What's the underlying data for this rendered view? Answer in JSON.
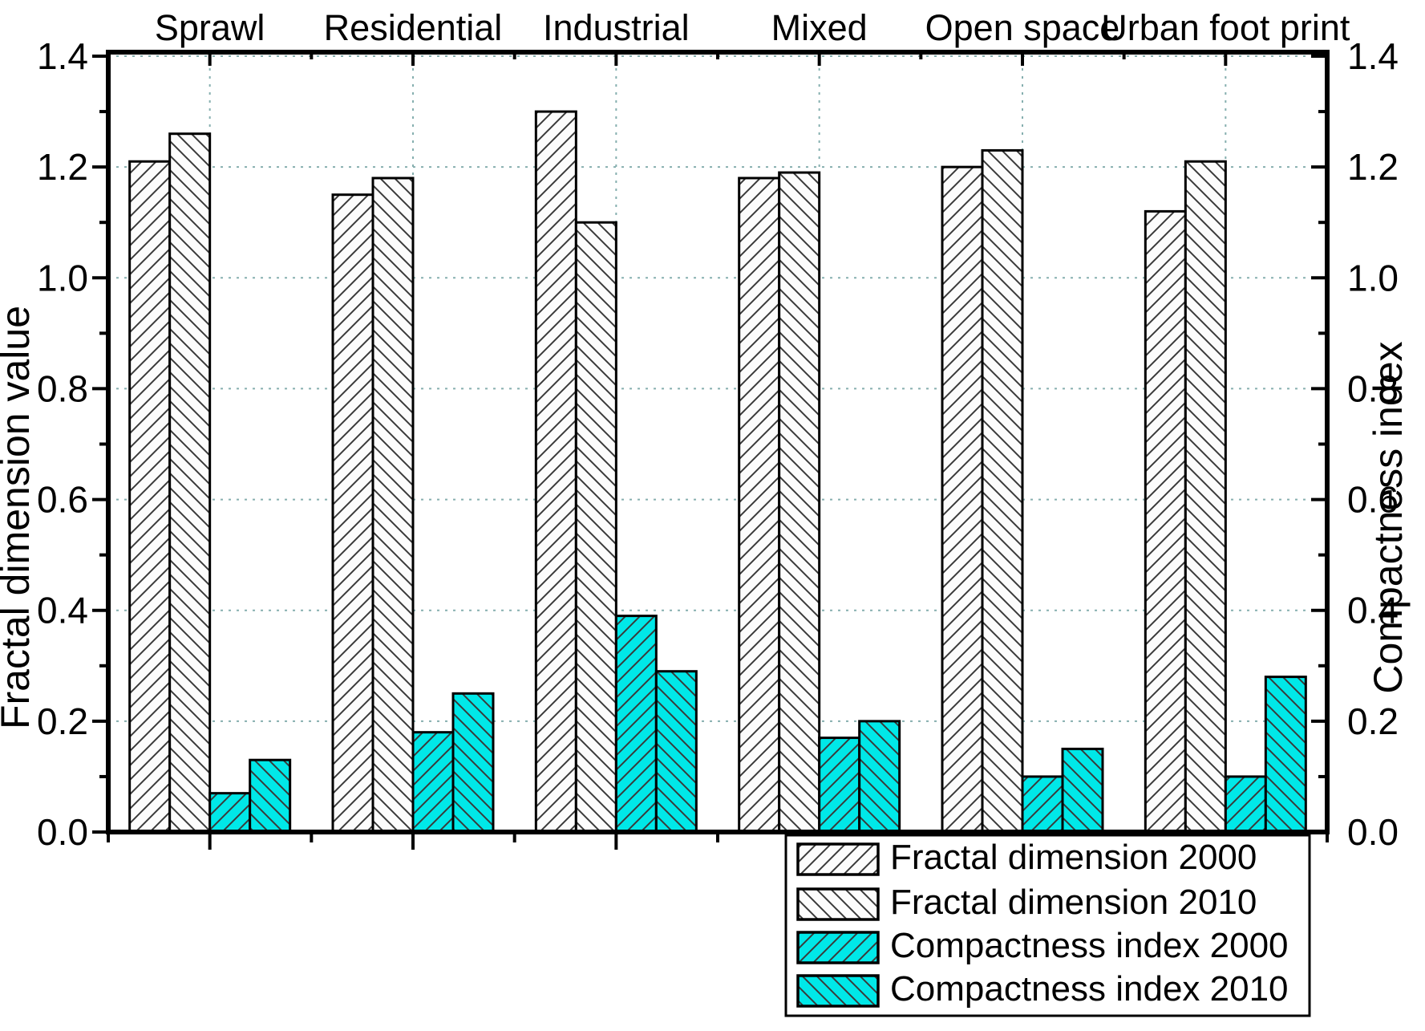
{
  "chart_data": {
    "type": "bar",
    "title": "",
    "categories": [
      "Sprawl",
      "Residential",
      "Industrial",
      "Mixed",
      "Open space",
      "Urban foot print"
    ],
    "series": [
      {
        "name": "Fractal dimension 2000",
        "axis": "left",
        "fill": "#FCFCFC",
        "hatch": "forward",
        "values": [
          1.21,
          1.15,
          1.3,
          1.18,
          1.2,
          1.12
        ]
      },
      {
        "name": "Fractal dimension 2010",
        "axis": "left",
        "fill": "#FCFCFC",
        "hatch": "backward",
        "values": [
          1.26,
          1.18,
          1.1,
          1.19,
          1.23,
          1.21
        ]
      },
      {
        "name": "Compactness index 2000",
        "axis": "right",
        "fill": "#00E8E8",
        "hatch": "forward",
        "values": [
          0.07,
          0.18,
          0.39,
          0.17,
          0.1,
          0.1
        ]
      },
      {
        "name": "Compactness index 2010",
        "axis": "right",
        "fill": "#00E8E8",
        "hatch": "backward",
        "values": [
          0.13,
          0.25,
          0.29,
          0.2,
          0.15,
          0.28
        ]
      }
    ],
    "ylabel_left": "Fractal dimension value",
    "ylabel_right": "Compactness index",
    "ylim": [
      0.0,
      1.4
    ],
    "ytick_step_major": 0.2,
    "ytick_step_minor": 0.1,
    "yticks_left": [
      "0.0",
      "0.2",
      "0.4",
      "0.6",
      "0.8",
      "1.0",
      "1.2",
      "1.4"
    ],
    "yticks_right": [
      "0.0",
      "0.2",
      "0.4",
      "0.6",
      "0.8",
      "1.0",
      "1.2",
      "1.4"
    ],
    "grid": "dotted",
    "grid_on": true,
    "legend_position": "bottom-right",
    "colors": {
      "axis": "#000000",
      "grid": "#86AFAF",
      "hatch_line": "#3A3A3A",
      "bar_white": "#FCFCFC",
      "bar_cyan": "#00E8E8",
      "legend_bg": "#FFFFFF"
    }
  }
}
